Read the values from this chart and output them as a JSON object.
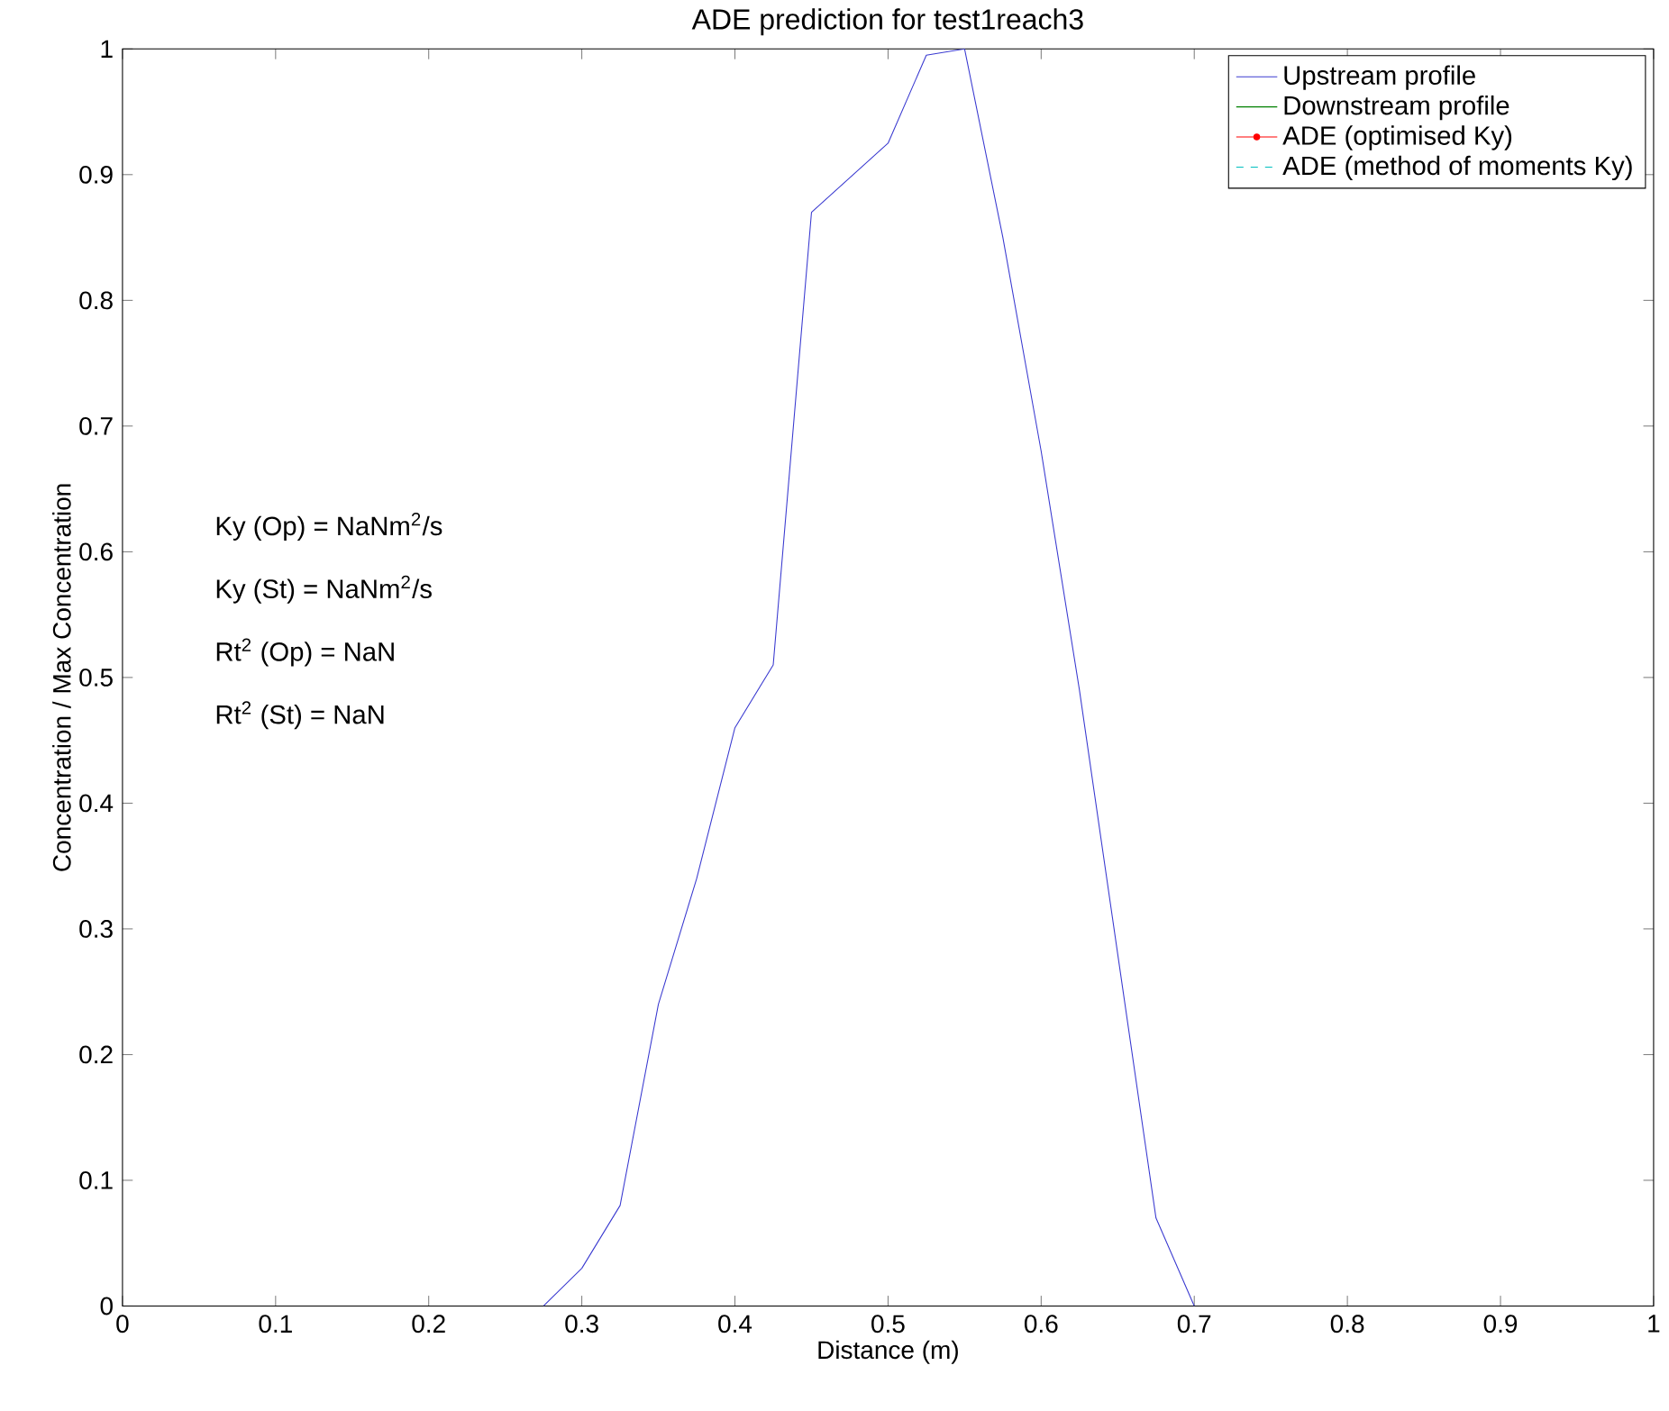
{
  "chart_data": {
    "type": "line",
    "title": "ADE prediction for test1reach3",
    "xlabel": "Distance (m)",
    "ylabel": "Concentration / Max Concentration",
    "series": [
      {
        "name": "Upstream profile",
        "color": "#3a3ad0",
        "x": [
          0.275,
          0.3,
          0.325,
          0.35,
          0.375,
          0.4,
          0.425,
          0.45,
          0.5,
          0.525,
          0.55,
          0.575,
          0.6,
          0.625,
          0.65,
          0.675,
          0.7
        ],
        "values": [
          0,
          0.03,
          0.08,
          0.24,
          0.34,
          0.46,
          0.51,
          0.87,
          0.925,
          0.995,
          1,
          0.85,
          0.68,
          0.49,
          0.28,
          0.07,
          0
        ]
      },
      {
        "name": "Downstream profile",
        "color": "#008000"
      },
      {
        "name": "ADE (optimised Ky)",
        "color": "#ff0000",
        "marker": "circle"
      },
      {
        "name": "ADE (method of moments Ky)",
        "color": "#00bfbf",
        "line_style": "dashed"
      }
    ],
    "xlim": [
      0,
      1
    ],
    "ylim": [
      0,
      1
    ],
    "xticks": [
      0,
      0.1,
      0.2,
      0.3,
      0.4,
      0.5,
      0.6,
      0.7,
      0.8,
      0.9,
      1
    ],
    "yticks": [
      0,
      0.1,
      0.2,
      0.3,
      0.4,
      0.5,
      0.6,
      0.7,
      0.8,
      0.9,
      1
    ],
    "grid": false,
    "legend": "top right",
    "annotations": [
      "Ky (Op) = NaNm$^{2}$/s",
      "Ky (St) = NaNm$^{2}$/s",
      "Rt$^{2}$ (Op) = NaN",
      "Rt$^{2}$ (St) = NaN"
    ]
  }
}
